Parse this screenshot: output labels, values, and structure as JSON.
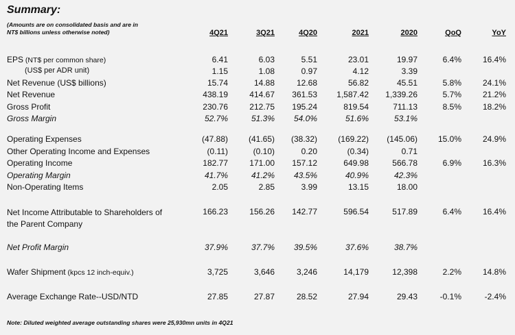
{
  "title": "Summary:",
  "subtitle_line1": "(Amounts are on consolidated basis and are in",
  "subtitle_line2": "NT$ billions unless otherwise noted)",
  "columns": [
    "4Q21",
    "3Q21",
    "4Q20",
    "2021",
    "2020",
    "QoQ",
    "YoY"
  ],
  "rows": [
    {
      "label": "EPS",
      "label_suffix": " (NT$ per common share)",
      "values": [
        "6.41",
        "6.03",
        "5.51",
        "23.01",
        "19.97",
        "6.4%",
        "16.4%"
      ]
    },
    {
      "label": "(US$ per ADR unit)",
      "values": [
        "1.15",
        "1.08",
        "0.97",
        "4.12",
        "3.39",
        "",
        ""
      ]
    },
    {
      "label": "Net Revenue (US$ billions)",
      "values": [
        "15.74",
        "14.88",
        "12.68",
        "56.82",
        "45.51",
        "5.8%",
        "24.1%"
      ]
    },
    {
      "label": "Net Revenue",
      "values": [
        "438.19",
        "414.67",
        "361.53",
        "1,587.42",
        "1,339.26",
        "5.7%",
        "21.2%"
      ]
    },
    {
      "label": "Gross Profit",
      "values": [
        "230.76",
        "212.75",
        "195.24",
        "819.54",
        "711.13",
        "8.5%",
        "18.2%"
      ]
    },
    {
      "label": "Gross Margin",
      "values": [
        "52.7%",
        "51.3%",
        "54.0%",
        "51.6%",
        "53.1%",
        "",
        ""
      ]
    },
    {
      "label": "Operating Expenses",
      "values": [
        "(47.88)",
        "(41.65)",
        "(38.32)",
        "(169.22)",
        "(145.06)",
        "15.0%",
        "24.9%"
      ]
    },
    {
      "label": "Other Operating Income and Expenses",
      "values": [
        "(0.11)",
        "(0.10)",
        "0.20",
        "(0.34)",
        "0.71",
        "",
        ""
      ]
    },
    {
      "label": "Operating Income",
      "values": [
        "182.77",
        "171.00",
        "157.12",
        "649.98",
        "566.78",
        "6.9%",
        "16.3%"
      ]
    },
    {
      "label": "Operating Margin",
      "values": [
        "41.7%",
        "41.2%",
        "43.5%",
        "40.9%",
        "42.3%",
        "",
        ""
      ]
    },
    {
      "label": "Non-Operating Items",
      "values": [
        "2.05",
        "2.85",
        "3.99",
        "13.15",
        "18.00",
        "",
        ""
      ]
    },
    {
      "label": "Net Income Attributable to Shareholders of",
      "label_line2": "the Parent Company",
      "values": [
        "166.23",
        "156.26",
        "142.77",
        "596.54",
        "517.89",
        "6.4%",
        "16.4%"
      ]
    },
    {
      "label": "Net Profit Margin",
      "values": [
        "37.9%",
        "37.7%",
        "39.5%",
        "37.6%",
        "38.7%",
        "",
        ""
      ]
    },
    {
      "label": "Wafer Shipment",
      "label_suffix": " (kpcs 12 inch-equiv.)",
      "values": [
        "3,725",
        "3,646",
        "3,246",
        "14,179",
        "12,398",
        "2.2%",
        "14.8%"
      ]
    },
    {
      "label": "Average Exchange Rate--USD/NTD",
      "values": [
        "27.85",
        "27.87",
        "28.52",
        "27.94",
        "29.43",
        "-0.1%",
        "-2.4%"
      ]
    }
  ],
  "note": "Note: Diluted weighted average outstanding shares were 25,930mn units in 4Q21"
}
